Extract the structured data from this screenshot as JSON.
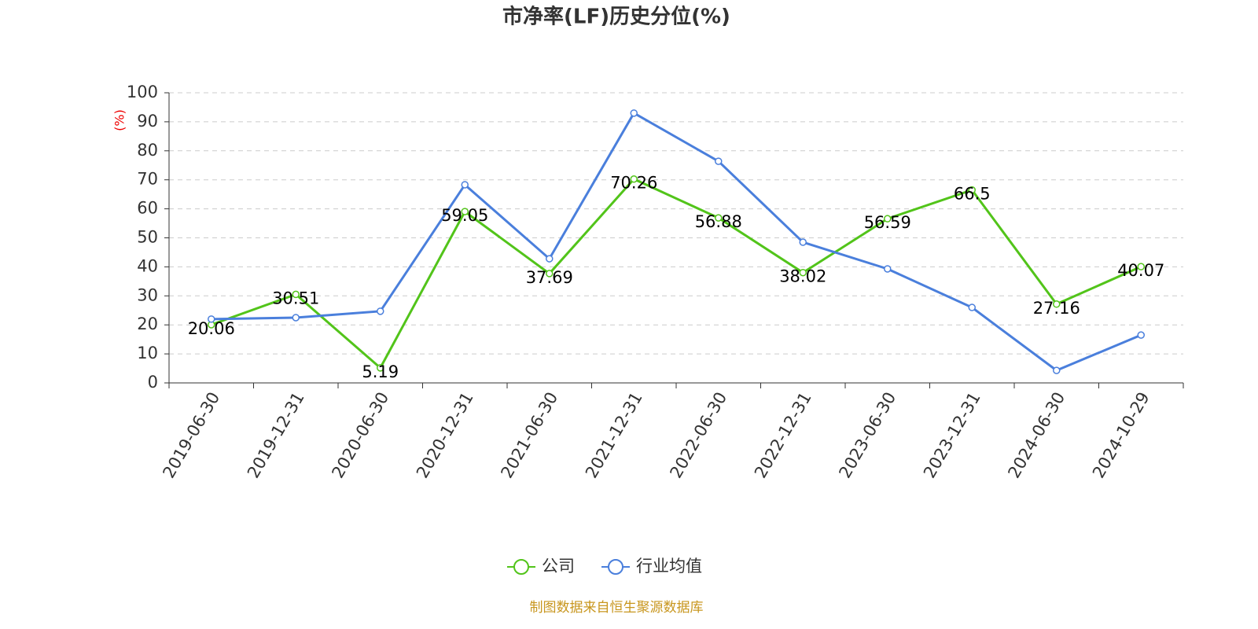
{
  "chart_data": {
    "type": "line",
    "title": "市净率(LF)历史分位(%)",
    "y_label": "(%)",
    "categories": [
      "2019-06-30",
      "2019-12-31",
      "2020-06-30",
      "2020-12-31",
      "2021-06-30",
      "2021-12-31",
      "2022-06-30",
      "2022-12-31",
      "2023-06-30",
      "2023-12-31",
      "2024-06-30",
      "2024-10-29"
    ],
    "series": [
      {
        "name": "公司",
        "color": "#52c41a",
        "values": [
          20.06,
          30.51,
          5.19,
          59.05,
          37.69,
          70.26,
          56.88,
          38.02,
          56.59,
          66.5,
          27.16,
          40.07
        ],
        "show_labels": true
      },
      {
        "name": "行业均值",
        "color": "#4a7fdc",
        "values": [
          22.0,
          22.5,
          24.7,
          68.3,
          42.8,
          93.0,
          76.4,
          48.5,
          39.3,
          26.0,
          4.3,
          16.5
        ],
        "show_labels": false
      }
    ],
    "ylim": [
      0,
      100
    ],
    "yticks": [
      0,
      10,
      20,
      30,
      40,
      50,
      60,
      70,
      80,
      90,
      100
    ],
    "grid": true,
    "source": "制图数据来自恒生聚源数据库"
  }
}
